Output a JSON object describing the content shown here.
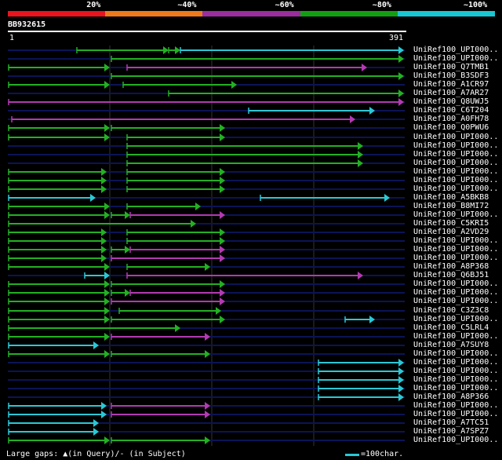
{
  "legend": {
    "segments": [
      {
        "label": "20%",
        "color": "#e8141e"
      },
      {
        "label": "~40%",
        "color": "#ee7a1c"
      },
      {
        "label": "~60%",
        "color": "#9b2d9e"
      },
      {
        "label": "~80%",
        "color": "#12a012"
      },
      {
        "label": "~100%",
        "color": "#18c7d2"
      }
    ]
  },
  "query": {
    "name": "BB932615",
    "start": "1",
    "end": "391"
  },
  "footer": {
    "gaps_text": "Large gaps: ▲(in Query)/‐ (in Subject)",
    "scale_text": "=100char."
  },
  "colors": {
    "bg": "#000000",
    "track": "#0b1456",
    "green": "#23b023",
    "magenta": "#b23ab2",
    "cyan": "#2ac8d6",
    "white": "#ffffff"
  },
  "hits": [
    {
      "name": "UniRef100_UPI000..",
      "segs": [
        [
          98,
          215,
          "green"
        ],
        [
          215,
          230,
          "green"
        ],
        [
          230,
          515,
          "cyan"
        ]
      ]
    },
    {
      "name": "UniRef100_UPI000..",
      "segs": [
        [
          142,
          515,
          "green"
        ]
      ]
    },
    {
      "name": "UniRef100_Q7TMB1",
      "segs": [
        [
          11,
          140,
          "green"
        ],
        [
          162,
          468,
          "magenta"
        ]
      ]
    },
    {
      "name": "UniRef100_B3SDF3",
      "segs": [
        [
          142,
          515,
          "green"
        ]
      ]
    },
    {
      "name": "UniRef100_A1CR97",
      "segs": [
        [
          11,
          140,
          "green"
        ],
        [
          157,
          302,
          "green"
        ]
      ]
    },
    {
      "name": "UniRef100_A7AR27",
      "segs": [
        [
          215,
          515,
          "green"
        ]
      ]
    },
    {
      "name": "UniRef100_Q8UWJ5",
      "segs": [
        [
          11,
          515,
          "magenta"
        ]
      ]
    },
    {
      "name": "UniRef100_C6T204",
      "segs": [
        [
          317,
          478,
          "cyan"
        ]
      ]
    },
    {
      "name": "UniRef100_A0FH78",
      "segs": [
        [
          15,
          453,
          "magenta"
        ]
      ]
    },
    {
      "name": "UniRef100_Q0PWU6",
      "segs": [
        [
          11,
          140,
          "green"
        ],
        [
          142,
          287,
          "green"
        ]
      ]
    },
    {
      "name": "UniRef100_UPI000..",
      "segs": [
        [
          11,
          140,
          "green"
        ],
        [
          162,
          287,
          "green"
        ]
      ]
    },
    {
      "name": "UniRef100_UPI000..",
      "segs": [
        [
          162,
          463,
          "green"
        ]
      ]
    },
    {
      "name": "UniRef100_UPI000..",
      "segs": [
        [
          162,
          463,
          "green"
        ]
      ]
    },
    {
      "name": "UniRef100_UPI000..",
      "segs": [
        [
          162,
          463,
          "green"
        ]
      ]
    },
    {
      "name": "UniRef100_UPI000..",
      "segs": [
        [
          11,
          136,
          "green"
        ],
        [
          162,
          287,
          "green"
        ]
      ]
    },
    {
      "name": "UniRef100_UPI000..",
      "segs": [
        [
          11,
          136,
          "green"
        ],
        [
          162,
          287,
          "green"
        ]
      ]
    },
    {
      "name": "UniRef100_UPI000..",
      "segs": [
        [
          11,
          136,
          "green"
        ],
        [
          162,
          287,
          "green"
        ]
      ]
    },
    {
      "name": "UniRef100_A5BKB8",
      "segs": [
        [
          11,
          122,
          "cyan"
        ],
        [
          332,
          497,
          "cyan"
        ]
      ]
    },
    {
      "name": "UniRef100_B8MI72",
      "segs": [
        [
          11,
          140,
          "green"
        ],
        [
          162,
          256,
          "green"
        ]
      ]
    },
    {
      "name": "UniRef100_UPI000..",
      "segs": [
        [
          11,
          140,
          "green"
        ],
        [
          142,
          166,
          "green"
        ],
        [
          166,
          287,
          "magenta"
        ]
      ]
    },
    {
      "name": "UniRef100_C5KRI5",
      "segs": [
        [
          11,
          250,
          "green"
        ]
      ]
    },
    {
      "name": "UniRef100_A2VD29",
      "segs": [
        [
          11,
          136,
          "green"
        ],
        [
          162,
          287,
          "green"
        ]
      ]
    },
    {
      "name": "UniRef100_UPI000..",
      "segs": [
        [
          11,
          136,
          "green"
        ],
        [
          162,
          287,
          "green"
        ]
      ]
    },
    {
      "name": "UniRef100_UPI000..",
      "segs": [
        [
          11,
          136,
          "green"
        ],
        [
          142,
          166,
          "green"
        ],
        [
          166,
          287,
          "magenta"
        ]
      ]
    },
    {
      "name": "UniRef100_UPI000..",
      "segs": [
        [
          11,
          136,
          "green"
        ],
        [
          142,
          287,
          "magenta"
        ]
      ]
    },
    {
      "name": "UniRef100_A8P368",
      "segs": [
        [
          11,
          140,
          "green"
        ],
        [
          162,
          268,
          "green"
        ]
      ]
    },
    {
      "name": "UniRef100_Q6BJ51",
      "segs": [
        [
          108,
          140,
          "cyan"
        ],
        [
          162,
          463,
          "magenta"
        ]
      ]
    },
    {
      "name": "UniRef100_UPI000..",
      "segs": [
        [
          11,
          140,
          "green"
        ],
        [
          142,
          287,
          "green"
        ]
      ]
    },
    {
      "name": "UniRef100_UPI000..",
      "segs": [
        [
          11,
          140,
          "green"
        ],
        [
          142,
          166,
          "green"
        ],
        [
          166,
          287,
          "magenta"
        ]
      ]
    },
    {
      "name": "UniRef100_UPI000..",
      "segs": [
        [
          11,
          140,
          "green"
        ],
        [
          142,
          287,
          "magenta"
        ]
      ]
    },
    {
      "name": "UniRef100_C3Z3C8",
      "segs": [
        [
          11,
          140,
          "green"
        ],
        [
          152,
          282,
          "green"
        ]
      ]
    },
    {
      "name": "UniRef100_UPI000..",
      "segs": [
        [
          11,
          140,
          "green"
        ],
        [
          142,
          287,
          "green"
        ],
        [
          440,
          478,
          "cyan"
        ]
      ]
    },
    {
      "name": "UniRef100_C5LRL4",
      "segs": [
        [
          11,
          230,
          "green"
        ]
      ]
    },
    {
      "name": "UniRef100_UPI000..",
      "segs": [
        [
          11,
          140,
          "green"
        ],
        [
          142,
          268,
          "magenta"
        ]
      ]
    },
    {
      "name": "UniRef100_A7SUY8",
      "segs": [
        [
          11,
          126,
          "cyan"
        ]
      ]
    },
    {
      "name": "UniRef100_UPI000..",
      "segs": [
        [
          11,
          140,
          "green"
        ],
        [
          142,
          268,
          "green"
        ]
      ]
    },
    {
      "name": "UniRef100_UPI000..",
      "segs": [
        [
          406,
          515,
          "cyan"
        ]
      ]
    },
    {
      "name": "UniRef100_UPI000..",
      "segs": [
        [
          406,
          515,
          "cyan"
        ]
      ]
    },
    {
      "name": "UniRef100_UPI000..",
      "segs": [
        [
          406,
          515,
          "cyan"
        ]
      ]
    },
    {
      "name": "UniRef100_UPI000..",
      "segs": [
        [
          406,
          515,
          "cyan"
        ]
      ]
    },
    {
      "name": "UniRef100_A8P366",
      "segs": [
        [
          406,
          515,
          "cyan"
        ]
      ]
    },
    {
      "name": "UniRef100_UPI000..",
      "segs": [
        [
          11,
          136,
          "cyan"
        ],
        [
          142,
          268,
          "magenta"
        ]
      ]
    },
    {
      "name": "UniRef100_UPI000..",
      "segs": [
        [
          11,
          136,
          "cyan"
        ],
        [
          142,
          268,
          "magenta"
        ]
      ]
    },
    {
      "name": "UniRef100_A7TC51",
      "segs": [
        [
          11,
          126,
          "cyan"
        ]
      ]
    },
    {
      "name": "UniRef100_A7SPZ7",
      "segs": [
        [
          11,
          126,
          "cyan"
        ]
      ]
    },
    {
      "name": "UniRef100_UPI000..",
      "segs": [
        [
          11,
          140,
          "green"
        ],
        [
          142,
          268,
          "green"
        ]
      ]
    }
  ]
}
